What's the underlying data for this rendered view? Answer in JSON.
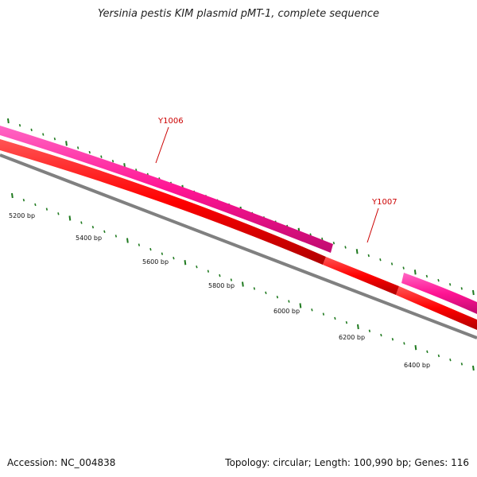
{
  "title": "Yersinia pestis KIM plasmid pMT-1, complete sequence",
  "footer": {
    "accession": "Accession: NC_004838",
    "summary": "Topology: circular; Length: 100,990 bp; Genes: 116"
  },
  "genes": [
    {
      "id": "Y1006",
      "strand": "forward",
      "color": "#ff1493"
    },
    {
      "id": "Y1007",
      "strand": "forward",
      "color": "#ff1493"
    }
  ],
  "colors": {
    "forward_gene": "#ff1493",
    "cds": "#ff0000",
    "backbone": "#808080",
    "tick": "#1f7a1f",
    "label": "#cc0000"
  },
  "scale_labels": [
    "5200 bp",
    "5400 bp",
    "5600 bp",
    "5800 bp",
    "6000 bp",
    "6200 bp",
    "6400 bp"
  ]
}
